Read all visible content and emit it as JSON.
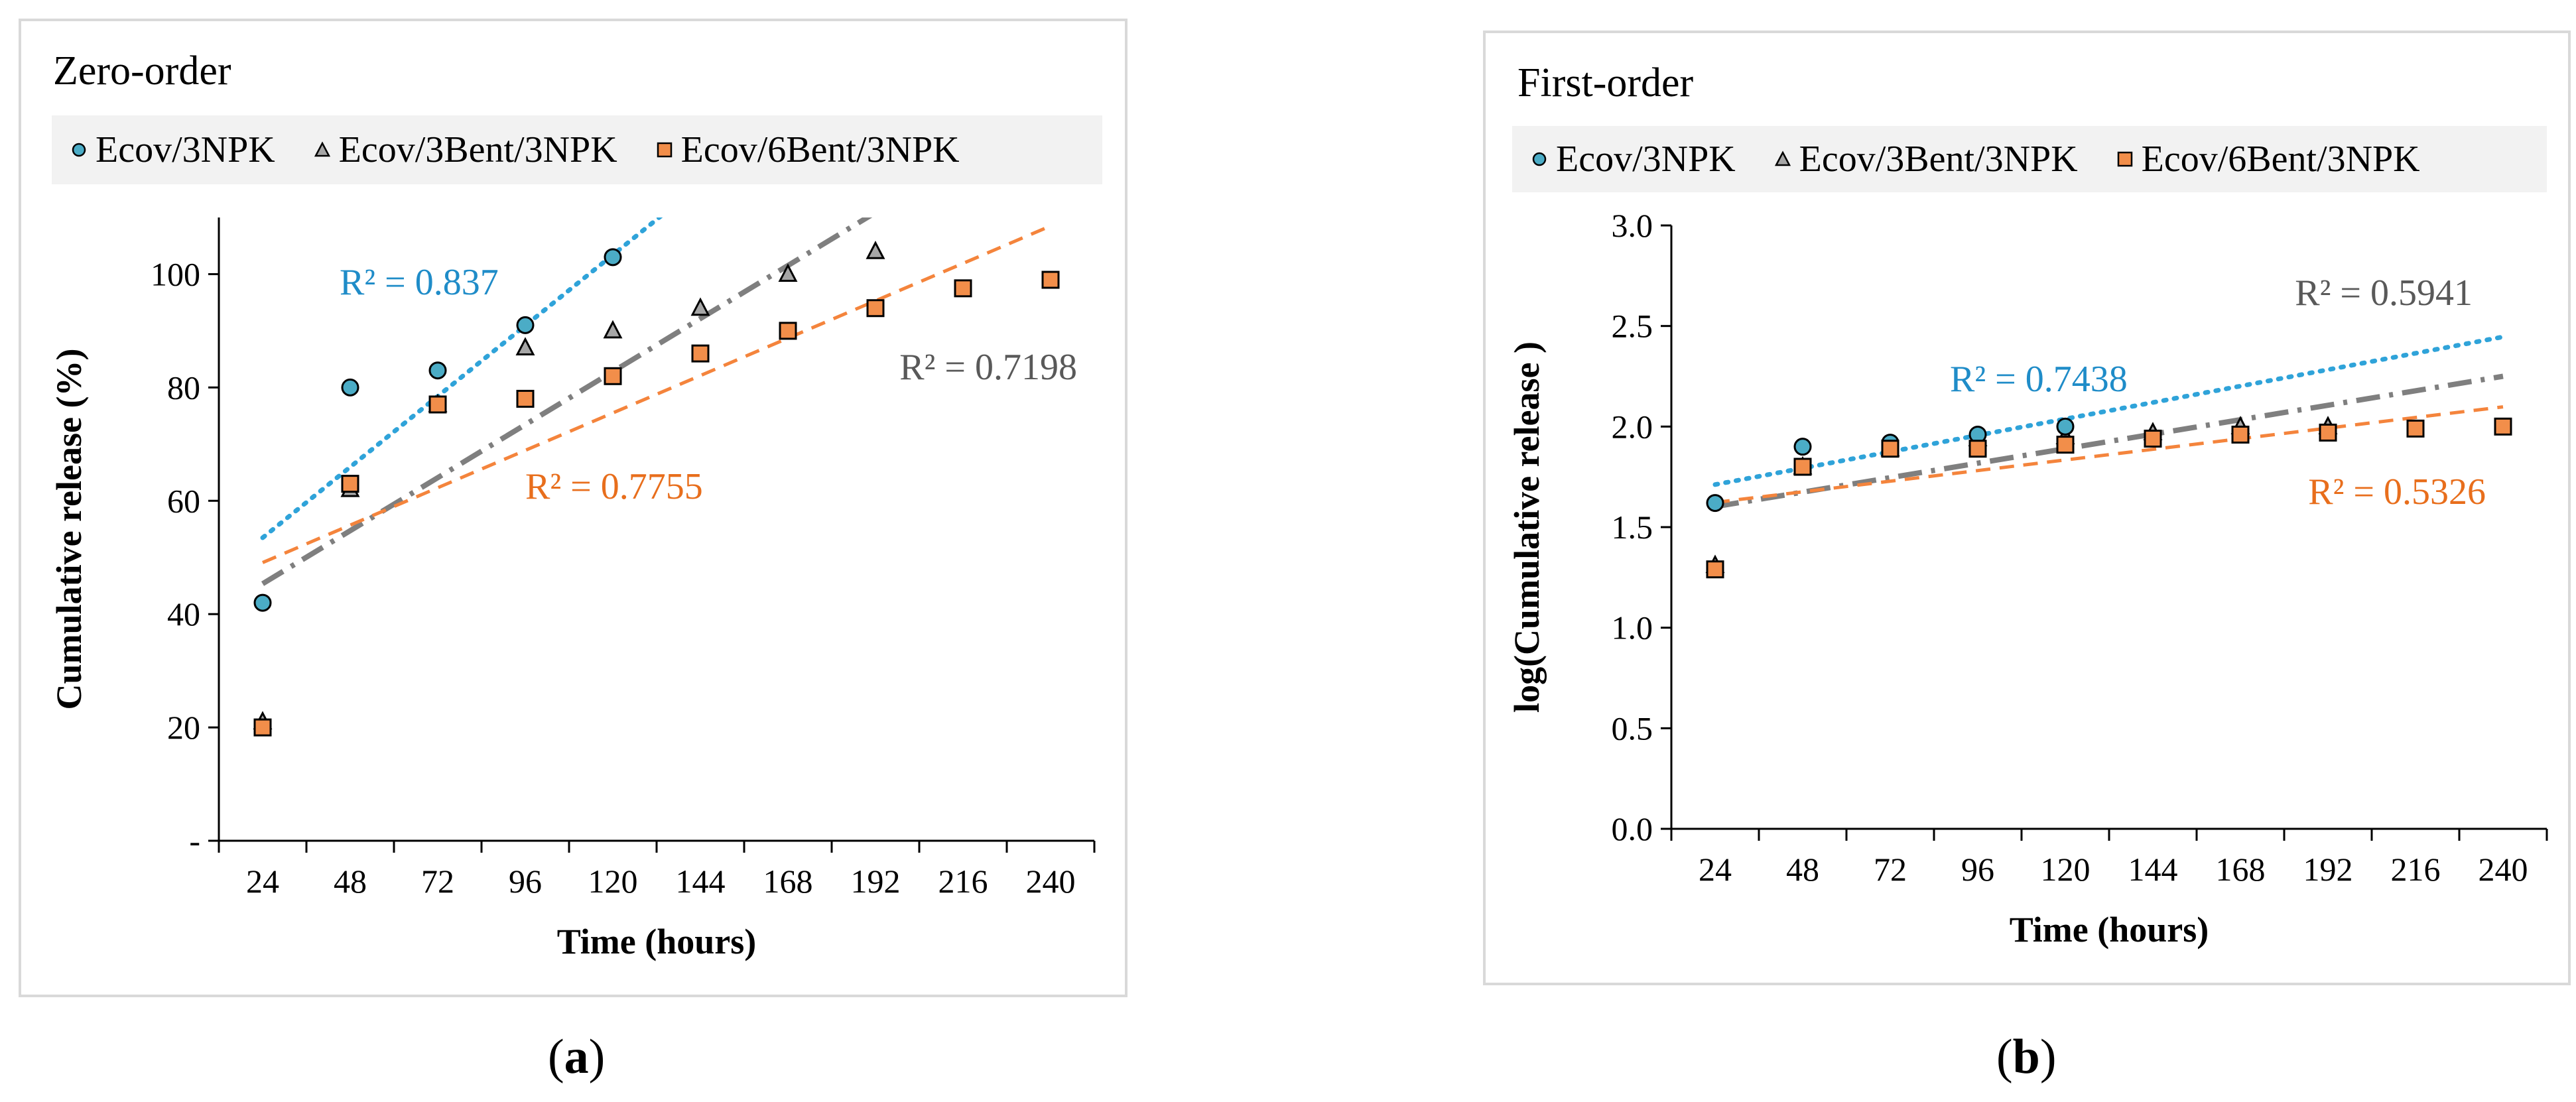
{
  "colors": {
    "series1": "#4bacc6",
    "series2": "#a6a6a6",
    "series3": "#f28e4a",
    "fit1": "#2fa3d9",
    "fit2": "#7f7f7f",
    "fit3": "#f4843c",
    "r2_1": "#1f8cc8",
    "r2_2": "#595959",
    "r2_3": "#e86e1c"
  },
  "chart_data": [
    {
      "type": "scatter",
      "panel_label": "a",
      "title": "Zero-order",
      "xlabel": "Time (hours)",
      "ylabel": "Cumulative release (%)",
      "xlim": [
        12,
        252
      ],
      "ylim": [
        0,
        110
      ],
      "xticks": [
        24,
        48,
        72,
        96,
        120,
        144,
        168,
        192,
        216,
        240
      ],
      "yticks": [
        0,
        20,
        40,
        60,
        80,
        100
      ],
      "ytick_labels": [
        "-",
        "20",
        "40",
        "60",
        "80",
        "100"
      ],
      "legend": [
        "Ecov/3NPK",
        "Ecov/3Bent/3NPK",
        "Ecov/6Bent/3NPK"
      ],
      "series": [
        {
          "name": "Ecov/3NPK",
          "marker": "circle",
          "x": [
            24,
            48,
            72,
            96,
            120
          ],
          "y": [
            42,
            80,
            83,
            91,
            103
          ],
          "fit": {
            "style": "dotted",
            "slope": 0.52,
            "intercept": 41,
            "x_start": 24,
            "x_end": 240
          },
          "r2_label": "R² = 0.837"
        },
        {
          "name": "Ecov/3Bent/3NPK",
          "marker": "triangle",
          "x": [
            24,
            48,
            72,
            96,
            120,
            144,
            168,
            192
          ],
          "y": [
            21,
            62,
            77,
            87,
            90,
            94,
            100,
            104
          ],
          "fit": {
            "style": "dashdot",
            "slope": 0.39,
            "intercept": 36,
            "x_start": 24,
            "x_end": 240
          },
          "r2_label": "R² = 0.7198"
        },
        {
          "name": "Ecov/6Bent/3NPK",
          "marker": "square",
          "x": [
            24,
            48,
            72,
            96,
            120,
            144,
            168,
            192,
            216,
            240
          ],
          "y": [
            20,
            63,
            77,
            78,
            82,
            86,
            90,
            94,
            97.5,
            99
          ],
          "fit": {
            "style": "dashed",
            "slope": 0.275,
            "intercept": 42.5,
            "x_start": 24,
            "x_end": 240
          },
          "r2_label": "R² = 0.7755"
        }
      ]
    },
    {
      "type": "scatter",
      "panel_label": "b",
      "title": "First-order",
      "xlabel": "Time (hours)",
      "ylabel": "log(Cumulative release )",
      "xlim": [
        12,
        252
      ],
      "ylim": [
        0,
        3
      ],
      "xticks": [
        24,
        48,
        72,
        96,
        120,
        144,
        168,
        192,
        216,
        240
      ],
      "yticks": [
        0,
        0.5,
        1,
        1.5,
        2,
        2.5,
        3
      ],
      "ytick_labels": [
        "0.0",
        "0.5",
        "1.0",
        "1.5",
        "2.0",
        "2.5",
        "3.0"
      ],
      "legend": [
        "Ecov/3NPK",
        "Ecov/3Bent/3NPK",
        "Ecov/6Bent/3NPK"
      ],
      "series": [
        {
          "name": "Ecov/3NPK",
          "marker": "circle",
          "x": [
            24,
            48,
            72,
            96,
            120
          ],
          "y": [
            1.62,
            1.9,
            1.92,
            1.96,
            2.0
          ],
          "fit": {
            "style": "dotted",
            "slope": 0.0034,
            "intercept": 1.63,
            "x_start": 24,
            "x_end": 240
          },
          "r2_label": "R² = 0.7438"
        },
        {
          "name": "Ecov/3Bent/3NPK",
          "marker": "triangle",
          "x": [
            24,
            48,
            72,
            96,
            120,
            144,
            168,
            192
          ],
          "y": [
            1.31,
            1.8,
            1.89,
            1.94,
            1.95,
            1.97,
            2.0,
            2.0
          ],
          "fit": {
            "style": "dashdot",
            "slope": 0.003,
            "intercept": 1.53,
            "x_start": 24,
            "x_end": 240
          },
          "r2_label": "R² = 0.5941"
        },
        {
          "name": "Ecov/6Bent/3NPK",
          "marker": "square",
          "x": [
            24,
            48,
            72,
            96,
            120,
            144,
            168,
            192,
            216,
            240
          ],
          "y": [
            1.29,
            1.8,
            1.89,
            1.89,
            1.91,
            1.94,
            1.96,
            1.97,
            1.99,
            2.0
          ],
          "fit": {
            "style": "dashed",
            "slope": 0.0022,
            "intercept": 1.57,
            "x_start": 24,
            "x_end": 240
          },
          "r2_label": "R² = 0.5326"
        }
      ]
    }
  ]
}
